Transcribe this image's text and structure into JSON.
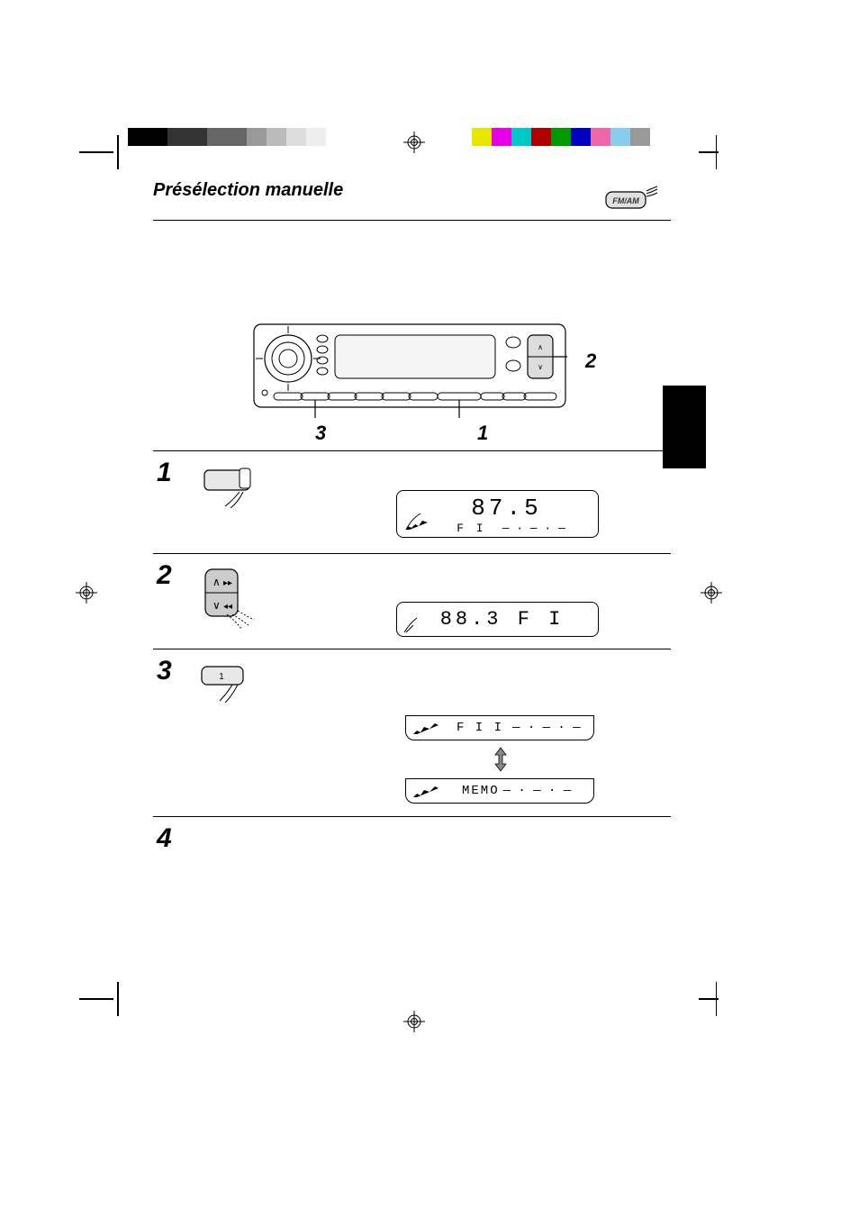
{
  "title": "Présélection manuelle",
  "fm_am_label": "FM/AM",
  "callouts": {
    "top_right": "2",
    "bottom_left": "3",
    "bottom_right": "1"
  },
  "steps": {
    "s1": {
      "num": "1",
      "lcd_main": "87.5",
      "lcd_sub": "F I"
    },
    "s2": {
      "num": "2",
      "lcd": "88.3   F I"
    },
    "s3": {
      "num": "3",
      "lcd_a": "F I  I",
      "lcd_b": "MEMO"
    },
    "s4": {
      "num": "4"
    }
  },
  "colorbar_gray": [
    "#000000",
    "#000000",
    "#333333",
    "#333333",
    "#666666",
    "#666666",
    "#999999",
    "#bbbbbb",
    "#dddddd",
    "#eeeeee",
    "#ffffff"
  ],
  "colorbar_color": [
    "#e6e600",
    "#e600e6",
    "#00c8c8",
    "#b00000",
    "#009900",
    "#0000c0",
    "#ee66aa",
    "#88ccee",
    "#999999"
  ],
  "colors": {
    "black": "#000000",
    "white": "#ffffff",
    "gray_light": "#cccccc",
    "gray_mid": "#999999"
  }
}
